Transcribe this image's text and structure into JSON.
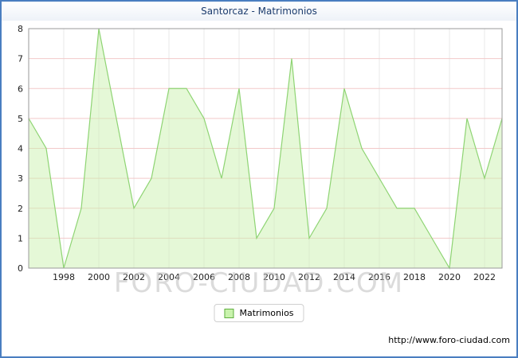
{
  "header": {
    "title": "Santorcaz - Matrimonios"
  },
  "legend": {
    "label": "Matrimonios"
  },
  "footer": {
    "url": "http://www.foro-ciudad.com"
  },
  "watermark": "FORO-CIUDAD.COM",
  "chart_data": {
    "type": "area",
    "title": "Santorcaz - Matrimonios",
    "series_name": "Matrimonios",
    "x": [
      1996,
      1997,
      1998,
      1999,
      2000,
      2001,
      2002,
      2003,
      2004,
      2005,
      2006,
      2007,
      2008,
      2009,
      2010,
      2011,
      2012,
      2013,
      2014,
      2015,
      2016,
      2017,
      2018,
      2019,
      2020,
      2021,
      2022,
      2023
    ],
    "values": [
      5,
      4,
      0,
      2,
      8,
      5,
      2,
      3,
      6,
      6,
      5,
      3,
      6,
      1,
      2,
      7,
      1,
      2,
      6,
      4,
      3,
      2,
      2,
      1,
      0,
      5,
      3,
      5
    ],
    "ylim": [
      0,
      8
    ],
    "yticks": [
      0,
      1,
      2,
      3,
      4,
      5,
      6,
      7,
      8
    ],
    "xticks": [
      1998,
      2000,
      2002,
      2004,
      2006,
      2008,
      2010,
      2012,
      2014,
      2016,
      2018,
      2020,
      2022
    ],
    "grid": true,
    "legend_position": "bottom",
    "colors": {
      "frame": "#4a7ec0",
      "area_fill": "#ccf2b0",
      "area_line": "#8ed473",
      "grid_h": "#f2c9c9",
      "grid_v": "#e8e8e8",
      "axis": "#9a9a9a",
      "tick_text": "#222222",
      "title": "#1c3c6e",
      "watermark": "#bfbfbf"
    }
  }
}
